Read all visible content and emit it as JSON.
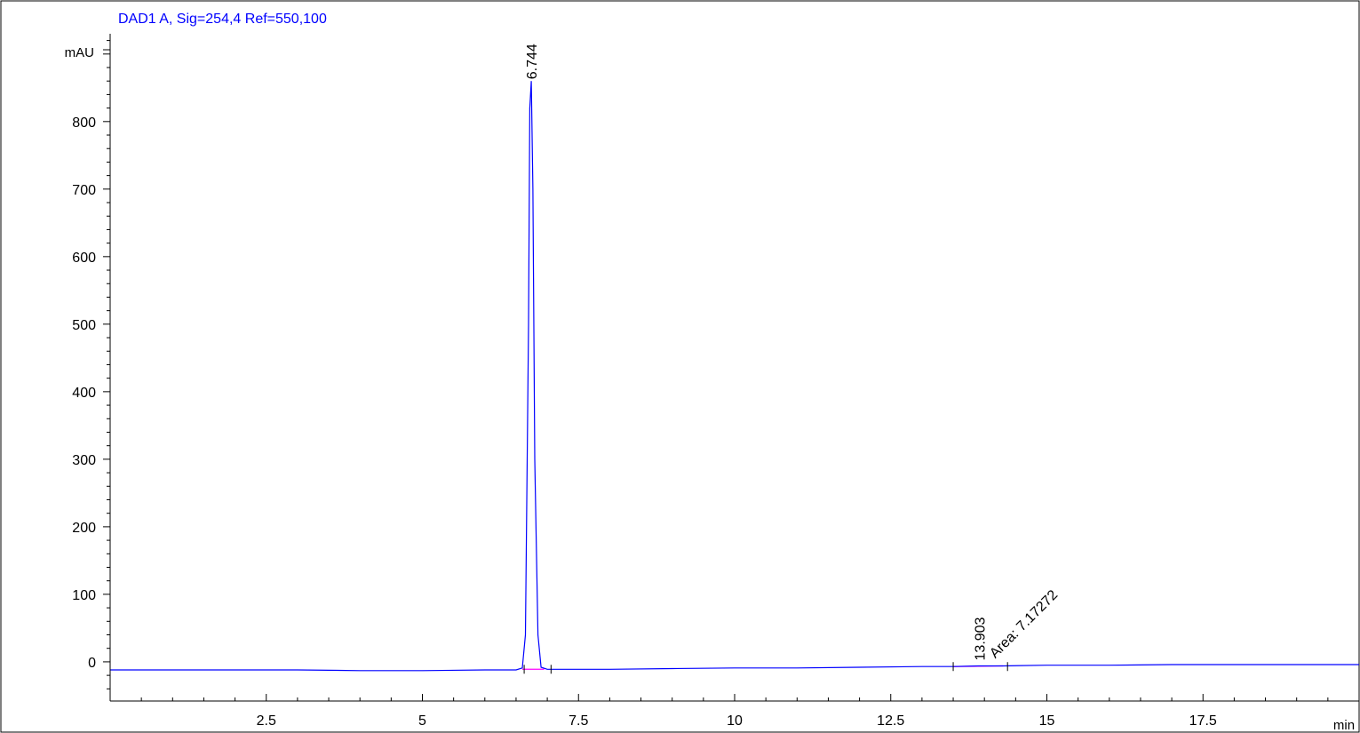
{
  "chart_data": {
    "type": "line",
    "title": "DAD1 A, Sig=254,4 Ref=550,100",
    "ylabel": "mAU",
    "xlabel": "min",
    "xlim": [
      0.0,
      20.0
    ],
    "ylim": [
      -58,
      930
    ],
    "x_ticks": [
      2.5,
      5,
      7.5,
      10,
      12.5,
      15,
      17.5
    ],
    "x_tick_labels": [
      "2.5",
      "5",
      "7.5",
      "10",
      "12.5",
      "15",
      "17.5"
    ],
    "y_ticks": [
      0,
      100,
      200,
      300,
      400,
      500,
      600,
      700,
      800
    ],
    "y_tick_labels": [
      "0",
      "100",
      "200",
      "300",
      "400",
      "500",
      "600",
      "700",
      "800"
    ],
    "grid": false,
    "colors": {
      "signal": "#0000ff",
      "baseline": "#ff00ff",
      "title": "#0000ff"
    },
    "series": [
      {
        "values_x": [
          0.0,
          1.0,
          2.0,
          3.0,
          4.0,
          5.0,
          6.0,
          6.5,
          6.6,
          6.65,
          6.7,
          6.72,
          6.744,
          6.77,
          6.8,
          6.85,
          6.9,
          7.0,
          8.0,
          9.0,
          10.0,
          11.0,
          12.0,
          13.0,
          13.5,
          13.903,
          14.3,
          15.0,
          16.0,
          17.0,
          18.0,
          19.0,
          20.0
        ],
        "values_y": [
          -12,
          -12,
          -12,
          -12,
          -13,
          -13,
          -12,
          -12,
          -9,
          40,
          500,
          820,
          860,
          700,
          300,
          40,
          -8,
          -11,
          -11,
          -10,
          -9,
          -9,
          -8,
          -7,
          -7,
          -6,
          -6,
          -5,
          -5,
          -4,
          -4,
          -4,
          -4
        ]
      }
    ],
    "peaks": [
      {
        "rt": 6.744,
        "label": "6.744",
        "height": 860
      },
      {
        "rt": 13.903,
        "label": "13.903",
        "height": -6,
        "area_label": "Area: 7.17272"
      }
    ],
    "integration_baselines": [
      {
        "x": [
          6.6,
          6.95
        ],
        "y": [
          -11,
          -11
        ]
      },
      {
        "x": [
          13.5,
          14.3
        ],
        "y": [
          -7,
          -6
        ]
      }
    ]
  }
}
